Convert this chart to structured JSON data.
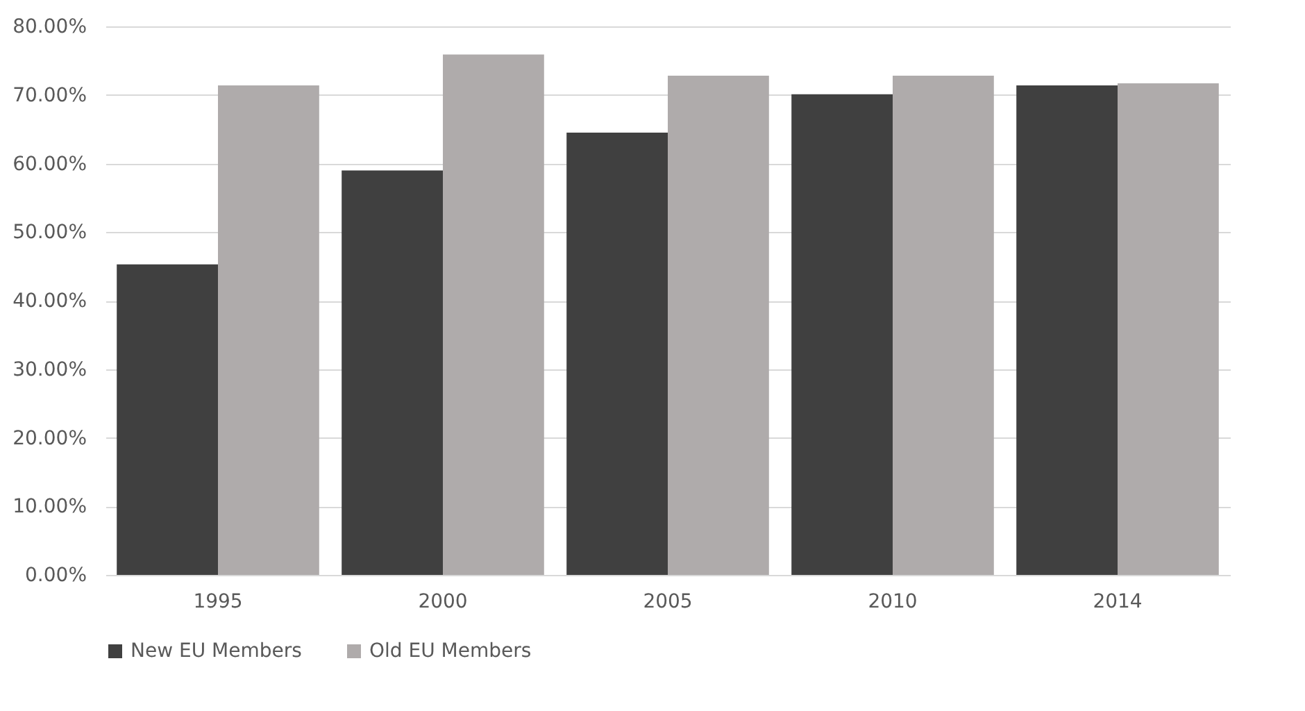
{
  "chart_data": {
    "type": "bar",
    "categories": [
      "1995",
      "2000",
      "2005",
      "2010",
      "2014"
    ],
    "series": [
      {
        "name": "New EU Members",
        "color": "#404040",
        "values": [
          45.3,
          59.0,
          64.5,
          70.1,
          71.4
        ]
      },
      {
        "name": "Old EU Members",
        "color": "#afabab",
        "values": [
          71.4,
          75.9,
          72.8,
          72.8,
          71.7
        ]
      }
    ],
    "ylim": [
      0,
      80
    ],
    "yticks": [
      {
        "value": 0,
        "label": "0.00%"
      },
      {
        "value": 10,
        "label": "10.00%"
      },
      {
        "value": 20,
        "label": "20.00%"
      },
      {
        "value": 30,
        "label": "30.00%"
      },
      {
        "value": 40,
        "label": "40.00%"
      },
      {
        "value": 50,
        "label": "50.00%"
      },
      {
        "value": 60,
        "label": "60.00%"
      },
      {
        "value": 70,
        "label": "70.00%"
      },
      {
        "value": 80,
        "label": "80.00%"
      }
    ],
    "grid": "y",
    "legend": "bottom"
  }
}
